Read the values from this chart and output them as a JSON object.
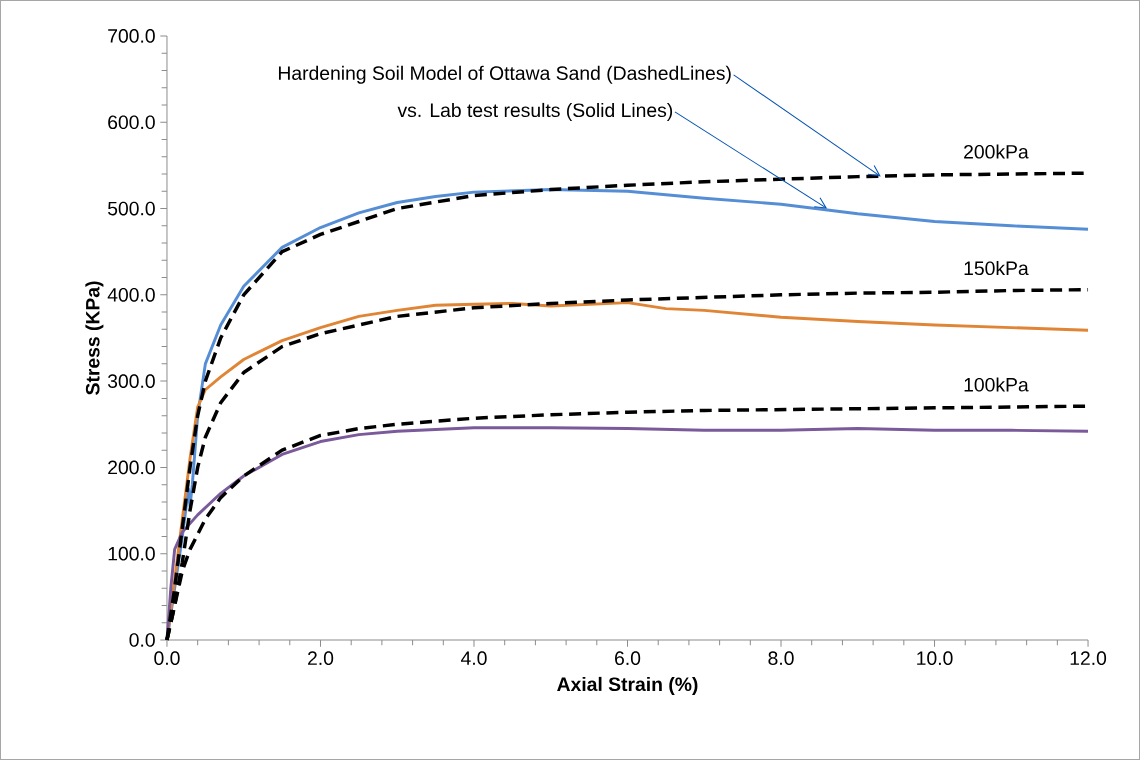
{
  "chart_data": {
    "type": "line",
    "xlabel": "Axial Strain (%)",
    "ylabel": "Stress (KPa)",
    "xlim": [
      0,
      12
    ],
    "ylim": [
      0,
      700
    ],
    "xticks": [
      {
        "value": 0,
        "label": "0.0"
      },
      {
        "value": 2,
        "label": "2.0"
      },
      {
        "value": 4,
        "label": "4.0"
      },
      {
        "value": 6,
        "label": "6.0"
      },
      {
        "value": 8,
        "label": "8.0"
      },
      {
        "value": 10,
        "label": "10.0"
      },
      {
        "value": 12,
        "label": "12.0"
      }
    ],
    "yticks": [
      {
        "value": 0,
        "label": "0.0"
      },
      {
        "value": 100,
        "label": "100.0"
      },
      {
        "value": 200,
        "label": "200.0"
      },
      {
        "value": 300,
        "label": "300.0"
      },
      {
        "value": 400,
        "label": "400.0"
      },
      {
        "value": 500,
        "label": "500.0"
      },
      {
        "value": 600,
        "label": "600.0"
      },
      {
        "value": 700,
        "label": "700.0"
      }
    ],
    "grid": false,
    "series": [
      {
        "color": "#558ed5",
        "line_style": "solid",
        "x": [
          0,
          0.1,
          0.2,
          0.28,
          0.3,
          0.33,
          0.4,
          0.5,
          0.7,
          1.0,
          1.5,
          2.0,
          2.5,
          3.0,
          3.5,
          4.0,
          5.0,
          6.0,
          7.0,
          8.0,
          9.0,
          10.0,
          11.0,
          12.0
        ],
        "values": [
          0,
          60,
          120,
          175,
          155,
          180,
          260,
          320,
          365,
          410,
          455,
          478,
          495,
          507,
          514,
          519,
          522,
          520,
          512,
          505,
          494,
          485,
          480,
          476
        ]
      },
      {
        "color": "#e08535",
        "line_style": "solid",
        "x": [
          0,
          0.1,
          0.2,
          0.3,
          0.4,
          0.5,
          0.7,
          1.0,
          1.5,
          2.0,
          2.5,
          3.0,
          3.5,
          4.0,
          4.5,
          5.0,
          6.0,
          6.5,
          7.0,
          8.0,
          9.0,
          10.0,
          11.0,
          12.0
        ],
        "values": [
          0,
          70,
          140,
          210,
          270,
          290,
          305,
          325,
          347,
          362,
          375,
          382,
          388,
          389,
          390,
          387,
          391,
          384,
          382,
          374,
          369,
          365,
          362,
          359
        ]
      },
      {
        "color": "#7a5a9a",
        "line_style": "solid",
        "x": [
          0,
          0.05,
          0.1,
          0.2,
          0.4,
          0.7,
          1.0,
          1.5,
          2.0,
          2.5,
          3.0,
          4.0,
          5.0,
          6.0,
          7.0,
          8.0,
          9.0,
          10.0,
          11.0,
          12.0
        ],
        "values": [
          0,
          60,
          105,
          125,
          145,
          170,
          190,
          215,
          230,
          238,
          242,
          246,
          246,
          245,
          243,
          243,
          245,
          243,
          243,
          242
        ]
      },
      {
        "name": "200kPa",
        "color": "#000000",
        "line_style": "dashed",
        "x": [
          0,
          0.1,
          0.2,
          0.3,
          0.4,
          0.5,
          0.7,
          1.0,
          1.5,
          2.0,
          2.5,
          3.0,
          4.0,
          5.0,
          6.0,
          7.0,
          8.0,
          9.0,
          10.0,
          11.0,
          12.0
        ],
        "values": [
          0,
          60,
          130,
          200,
          260,
          300,
          350,
          400,
          450,
          470,
          485,
          500,
          515,
          522,
          527,
          531,
          534,
          537,
          539,
          540,
          541
        ]
      },
      {
        "name": "150kPa",
        "color": "#000000",
        "line_style": "dashed",
        "x": [
          0,
          0.1,
          0.2,
          0.3,
          0.4,
          0.5,
          0.7,
          1.0,
          1.5,
          2.0,
          2.5,
          3.0,
          4.0,
          5.0,
          6.0,
          7.0,
          8.0,
          9.0,
          10.0,
          11.0,
          12.0
        ],
        "values": [
          0,
          40,
          90,
          150,
          200,
          235,
          275,
          310,
          340,
          355,
          365,
          375,
          385,
          390,
          394,
          397,
          400,
          402,
          403,
          405,
          406
        ]
      },
      {
        "name": "100kPa",
        "color": "#000000",
        "line_style": "dashed",
        "x": [
          0,
          0.1,
          0.2,
          0.3,
          0.5,
          0.7,
          1.0,
          1.5,
          2.0,
          2.5,
          3.0,
          4.0,
          5.0,
          6.0,
          7.0,
          8.0,
          9.0,
          10.0,
          11.0,
          12.0
        ],
        "values": [
          0,
          40,
          80,
          105,
          140,
          165,
          190,
          220,
          237,
          245,
          250,
          257,
          261,
          264,
          266,
          267,
          268,
          269,
          270,
          271
        ]
      }
    ],
    "annotations": [
      {
        "text": "Hardening Soil Model of Ottawa Sand (DashedLines)",
        "x": 9.3,
        "y": 537
      },
      {
        "text": "vs. Lab test results (Solid Lines)",
        "x": 8.6,
        "y": 500
      }
    ]
  }
}
